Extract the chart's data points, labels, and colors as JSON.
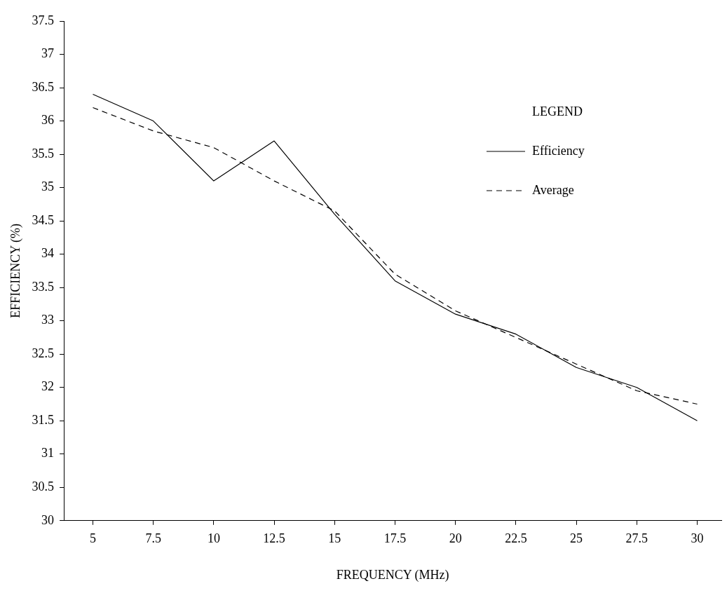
{
  "chart_data": {
    "type": "line",
    "xlabel": "FREQUENCY (MHz)",
    "ylabel": "EFFICIENCY (%)",
    "legend_title": "LEGEND",
    "legend": "top right",
    "grid": false,
    "marker": "none",
    "x": [
      5,
      7.5,
      10,
      12.5,
      15,
      17.5,
      20,
      22.5,
      25,
      27.5,
      30
    ],
    "xlim": [
      3.8,
      31
    ],
    "xticks": [
      5,
      7.5,
      10,
      12.5,
      15,
      17.5,
      20,
      22.5,
      25,
      27.5,
      30
    ],
    "ylim": [
      30,
      37.5
    ],
    "yticks": [
      30,
      30.5,
      31,
      31.5,
      32,
      32.5,
      33,
      33.5,
      34,
      34.5,
      35,
      35.5,
      36,
      36.5,
      37,
      37.5
    ],
    "series": [
      {
        "name": "Efficiency",
        "color": "#000000",
        "line_style": "solid",
        "values": [
          36.4,
          36.0,
          35.1,
          35.7,
          34.6,
          33.6,
          33.1,
          32.8,
          32.3,
          32.0,
          31.5
        ]
      },
      {
        "name": "Average",
        "color": "#000000",
        "line_style": "dashed",
        "values": [
          36.2,
          35.85,
          35.6,
          35.1,
          34.65,
          33.7,
          33.15,
          32.75,
          32.35,
          31.95,
          31.75
        ]
      }
    ]
  }
}
